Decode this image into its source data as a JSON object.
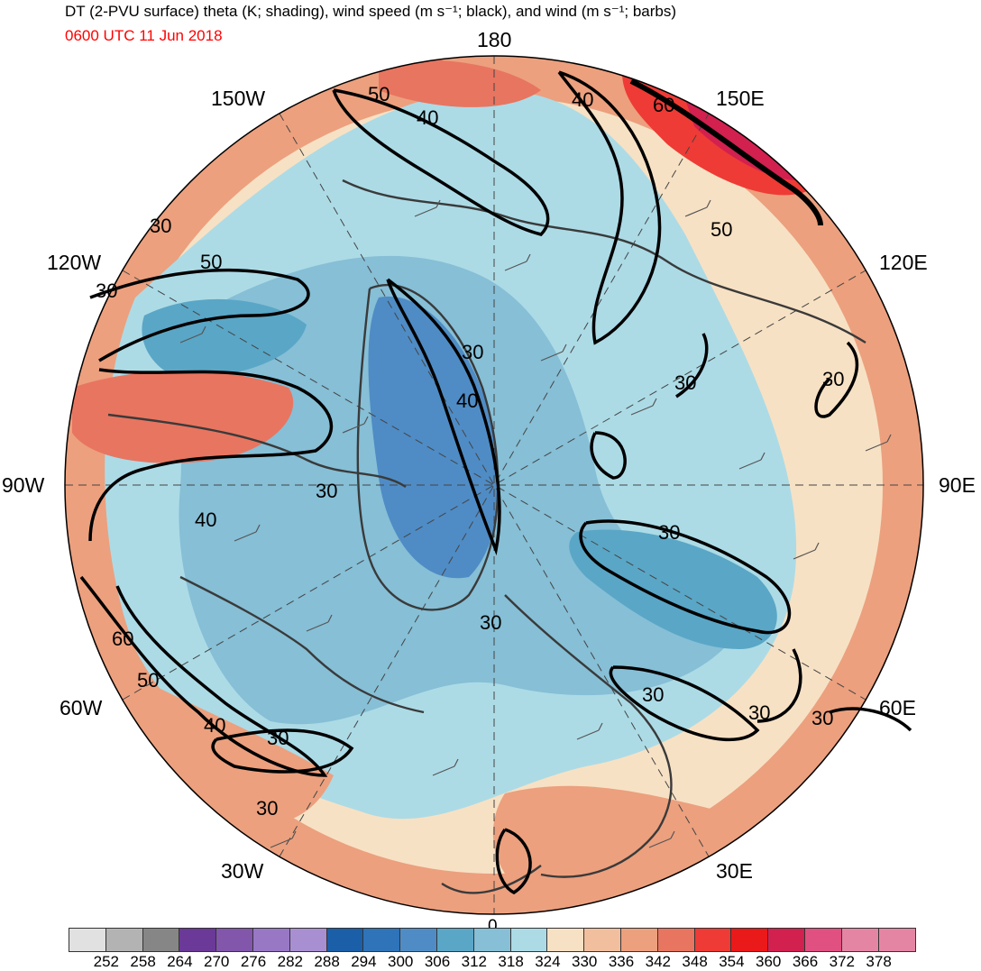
{
  "header": {
    "title": "DT (2-PVU surface) theta (K; shading), wind speed (m s⁻¹; black), and wind (m s⁻¹; barbs)",
    "valid_time": "0600 UTC 11 Jun 2018"
  },
  "map": {
    "projection": "north polar stereographic",
    "lon_labels": [
      "180",
      "150E",
      "120E",
      "90E",
      "60E",
      "30E",
      "0",
      "30W",
      "60W",
      "90W",
      "120W",
      "150W"
    ],
    "contour_labels": [
      "50",
      "40",
      "40",
      "60",
      "50",
      "30",
      "50",
      "30",
      "30",
      "40",
      "30",
      "30",
      "40",
      "30",
      "30",
      "30",
      "30",
      "60",
      "50",
      "40",
      "30",
      "30",
      "30",
      "30"
    ],
    "colors": {
      "ocean_theta": "#a7d7e1",
      "cold_core": "#4d7fbf",
      "warm_rim": "#eaa07f",
      "hot_spot": "#e84a4a",
      "contour": "#000000",
      "coast": "#3a3a3a"
    }
  },
  "colorbar": {
    "ticks": [
      "252",
      "258",
      "264",
      "270",
      "276",
      "282",
      "288",
      "294",
      "300",
      "306",
      "312",
      "318",
      "324",
      "330",
      "336",
      "342",
      "348",
      "354",
      "360",
      "366",
      "372",
      "378"
    ],
    "colors": [
      "#e1e1e1",
      "#b3b3b3",
      "#868686",
      "#6b3a98",
      "#8257ab",
      "#9878c5",
      "#a88fd2",
      "#1a5fa8",
      "#2f73b8",
      "#4f8cc5",
      "#5aa6c6",
      "#86bfd6",
      "#acdbe6",
      "#f7e1c4",
      "#f2bf9e",
      "#eca07e",
      "#e87560",
      "#ee3b35",
      "#ea1a1a",
      "#d2204f",
      "#e05080",
      "#e585a4"
    ]
  }
}
